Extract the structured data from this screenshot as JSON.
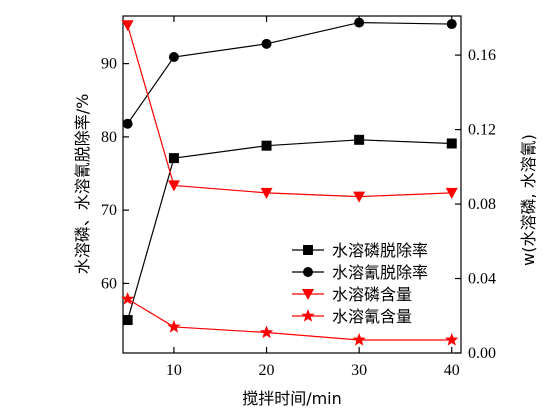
{
  "chart_data": {
    "type": "line",
    "title": "",
    "xlabel": "搅拌时间/min",
    "ylabel_left": "水溶磷、水溶氰脱除率/%",
    "ylabel_right": "w(水溶磷, 水溶氰)",
    "x": [
      5,
      10,
      20,
      30,
      40
    ],
    "xlim": [
      4.5,
      41
    ],
    "x_ticks": [
      "10",
      "20",
      "30",
      "40"
    ],
    "ylim_left": [
      50.5,
      96.5
    ],
    "ylim_right": [
      0.0,
      0.181
    ],
    "y_ticks_left": [
      "60",
      "70",
      "80",
      "90"
    ],
    "y_ticks_right": [
      "0.00",
      "0.04",
      "0.08",
      "0.12",
      "0.16"
    ],
    "grid": false,
    "legend_position": "lower-right",
    "series": [
      {
        "name": "水溶磷脱除率",
        "axis": "left",
        "color": "#000000",
        "marker": "square",
        "values": [
          55.0,
          77.1,
          78.8,
          79.6,
          79.1
        ]
      },
      {
        "name": "水溶氰脱除率",
        "axis": "left",
        "color": "#000000",
        "marker": "circle",
        "values": [
          81.8,
          90.9,
          92.7,
          95.6,
          95.4
        ]
      },
      {
        "name": "水溶磷含量",
        "axis": "right",
        "color": "#ff0000",
        "marker": "triangle-down",
        "values": [
          0.176,
          0.09,
          0.086,
          0.084,
          0.086
        ]
      },
      {
        "name": "水溶氰含量",
        "axis": "right",
        "color": "#ff0000",
        "marker": "star",
        "values": [
          0.029,
          0.014,
          0.011,
          0.007,
          0.007
        ]
      }
    ]
  }
}
